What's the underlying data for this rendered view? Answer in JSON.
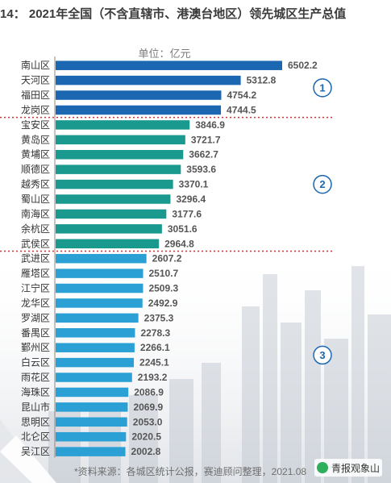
{
  "title": "14： 2021年全国（不含直辖市、港澳台地区）领先城区生产总值",
  "unit_label": "单位：亿元",
  "source_note": "*资料来源：各城区统计公报，赛迪顾问整理，2021.08",
  "watermark": "青报观象山",
  "colors": {
    "group1": "#1b67b2",
    "group2": "#1a9a8f",
    "group3": "#2aa0d4",
    "divider": "#d62f2f",
    "marker_stroke": "#1b67b2",
    "marker_text": "#1b67b2"
  },
  "chart_data": {
    "type": "bar",
    "orientation": "horizontal",
    "unit": "亿元",
    "categories": [
      "南山区",
      "天河区",
      "福田区",
      "龙岗区",
      "宝安区",
      "黄岛区",
      "黄埔区",
      "顺德区",
      "越秀区",
      "蜀山区",
      "南海区",
      "余杭区",
      "武侯区",
      "武进区",
      "雁塔区",
      "江宁区",
      "龙华区",
      "罗湖区",
      "番禺区",
      "鄞州区",
      "白云区",
      "雨花区",
      "海珠区",
      "昆山市",
      "思明区",
      "北仑区",
      "吴江区"
    ],
    "values": [
      6502.2,
      5312.8,
      4754.2,
      4744.5,
      3846.9,
      3721.7,
      3662.7,
      3593.6,
      3370.1,
      3296.4,
      3177.6,
      3051.6,
      2964.8,
      2607.2,
      2510.7,
      2509.3,
      2492.9,
      2375.3,
      2278.3,
      2266.1,
      2245.1,
      2193.2,
      2086.9,
      2069.9,
      2053.0,
      2020.5,
      2002.8
    ],
    "value_labels": [
      "6502.2",
      "5312.8",
      "4754.2",
      "4744.5",
      "3846.9",
      "3721.7",
      "3662.7",
      "3593.6",
      "3370.1",
      "3296.4",
      "3177.6",
      "3051.6",
      "2964.8",
      "2607.2",
      "2510.7",
      "2509.3",
      "2492.9",
      "2375.3",
      "2278.3",
      "2266.1",
      "2245.1",
      "2193.2",
      "2086.9",
      "2069.9",
      "2053.0",
      "2020.5",
      "2002.8"
    ],
    "groups": [
      {
        "marker": "1",
        "start": 0,
        "end": 3,
        "color_key": "group1"
      },
      {
        "marker": "2",
        "start": 4,
        "end": 12,
        "color_key": "group2"
      },
      {
        "marker": "3",
        "start": 13,
        "end": 26,
        "color_key": "group3"
      }
    ],
    "xlim": [
      0,
      6502.2
    ],
    "grid": false,
    "legend": "none"
  }
}
